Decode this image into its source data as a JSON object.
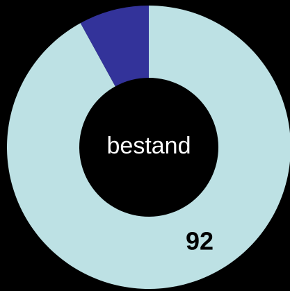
{
  "chart_data": {
    "type": "pie",
    "center_label": "bestand",
    "values": [
      92,
      8
    ],
    "colors": [
      "#bde1e4",
      "#33339a"
    ],
    "hole": true
  }
}
